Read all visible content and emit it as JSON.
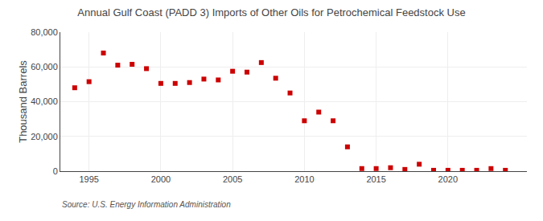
{
  "chart_data": {
    "type": "scatter",
    "title": "Annual Gulf Coast (PADD 3) Imports of Other Oils for Petrochemical Feedstock Use",
    "ylabel": "Thousand Barrels",
    "annotations": [
      "Source: U.S. Energy Information Administration"
    ],
    "x": [
      1994,
      1995,
      1996,
      1997,
      1998,
      1999,
      2000,
      2001,
      2002,
      2003,
      2004,
      2005,
      2006,
      2007,
      2008,
      2009,
      2010,
      2011,
      2012,
      2013,
      2014,
      2015,
      2016,
      2017,
      2018,
      2019,
      2020,
      2021,
      2022,
      2023,
      2024
    ],
    "values": [
      48000,
      51500,
      68000,
      61000,
      61500,
      59000,
      50500,
      50500,
      51000,
      53000,
      52500,
      57500,
      57000,
      62500,
      53500,
      45000,
      29000,
      34000,
      29000,
      14000,
      1500,
      1500,
      2000,
      1000,
      4000,
      500,
      500,
      500,
      500,
      1500,
      500
    ],
    "color": "#cc0000",
    "marker": "square",
    "xlim": [
      1993.0,
      2025.5
    ],
    "ylim": [
      0,
      80000
    ],
    "xticks": [
      1995,
      2000,
      2005,
      2010,
      2015,
      2020
    ],
    "yticks": [
      0,
      {
        "value": 20000,
        "label": "20,000"
      },
      {
        "value": 40000,
        "label": "40,000"
      },
      {
        "value": 60000,
        "label": "60,000"
      },
      {
        "value": 80000,
        "label": "80,000"
      }
    ],
    "grid": true
  }
}
